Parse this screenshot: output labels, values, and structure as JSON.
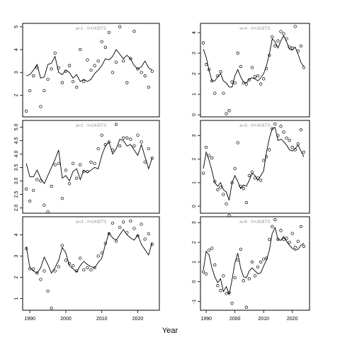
{
  "chart_data": {
    "type": "line",
    "xlabel": "Year",
    "x_ticks": [
      1990,
      2000,
      2010,
      2020
    ],
    "x_range": [
      1988,
      2026
    ],
    "panels": [
      {
        "title": "a=1 : f=UKBTS",
        "ylim": [
          1.05,
          5.15
        ],
        "y_ticks": [
          2,
          3,
          4,
          5
        ],
        "fitted": {
          "x": [
            1989,
            1990,
            1991,
            1992,
            1993,
            1994,
            1995,
            1996,
            1997,
            1998,
            1999,
            2000,
            2001,
            2002,
            2003,
            2004,
            2005,
            2006,
            2007,
            2008,
            2009,
            2010,
            2011,
            2012,
            2013,
            2014,
            2015,
            2016,
            2017,
            2018,
            2019,
            2020,
            2021,
            2022,
            2023,
            2024
          ],
          "y": [
            2.85,
            2.9,
            3.1,
            3.35,
            2.75,
            2.8,
            3.35,
            3.4,
            3.7,
            3.0,
            2.9,
            3.1,
            3.0,
            2.75,
            2.9,
            2.6,
            2.7,
            2.6,
            2.7,
            2.95,
            3.1,
            3.3,
            3.6,
            3.55,
            3.7,
            4.0,
            3.8,
            3.6,
            3.75,
            3.6,
            3.3,
            3.15,
            3.25,
            3.5,
            3.2,
            3.1
          ]
        },
        "observed": {
          "x": [
            1989,
            1990,
            1991,
            1992,
            1993,
            1994,
            1995,
            1996,
            1997,
            1998,
            1999,
            2000,
            2001,
            2002,
            2003,
            2004,
            2005,
            2006,
            2007,
            2008,
            2009,
            2010,
            2011,
            2012,
            2013,
            2014,
            2015,
            2016,
            2017,
            2018,
            2019,
            2020,
            2021,
            2022,
            2023,
            2024
          ],
          "y": [
            1.3,
            2.2,
            2.85,
            3.2,
            1.5,
            2.2,
            2.7,
            3.15,
            3.85,
            3.2,
            2.55,
            3.05,
            3.3,
            2.6,
            2.35,
            4.0,
            2.6,
            3.55,
            3.1,
            3.3,
            3.5,
            4.35,
            4.1,
            4.75,
            3.0,
            3.45,
            5.0,
            3.5,
            2.55,
            3.6,
            4.8,
            3.15,
            3.0,
            2.85,
            2.35,
            3.05
          ]
        }
      },
      {
        "title": "a=4 : f=UKBTS",
        "ylim": [
          -0.1,
          4.45
        ],
        "y_ticks": [
          0,
          1,
          2,
          3,
          4
        ],
        "fitted": {
          "x": [
            1989,
            1990,
            1991,
            1992,
            1993,
            1994,
            1995,
            1996,
            1997,
            1998,
            1999,
            2000,
            2001,
            2002,
            2003,
            2004,
            2005,
            2006,
            2007,
            2008,
            2009,
            2010,
            2011,
            2012,
            2013,
            2014,
            2015,
            2016,
            2017,
            2018,
            2019,
            2020,
            2021,
            2022,
            2023,
            2024
          ],
          "y": [
            3.2,
            2.8,
            2.15,
            1.65,
            1.65,
            1.85,
            2.0,
            1.65,
            1.55,
            1.35,
            1.35,
            1.9,
            2.2,
            1.85,
            1.6,
            1.55,
            1.75,
            1.8,
            1.75,
            1.65,
            1.8,
            2.0,
            2.4,
            2.95,
            3.7,
            3.55,
            3.25,
            3.6,
            3.85,
            3.55,
            3.2,
            3.15,
            3.3,
            2.95,
            2.55,
            2.35
          ]
        },
        "observed": {
          "x": [
            1989,
            1990,
            1991,
            1992,
            1993,
            1994,
            1995,
            1996,
            1997,
            1998,
            1999,
            2000,
            2001,
            2002,
            2003,
            2004,
            2005,
            2006,
            2007,
            2008,
            2009,
            2010,
            2011,
            2012,
            2013,
            2014,
            2015,
            2016,
            2017,
            2018,
            2019,
            2020,
            2021,
            2022,
            2023,
            2024
          ],
          "y": [
            3.5,
            2.45,
            2.2,
            1.65,
            1.05,
            1.9,
            2.1,
            1.05,
            0.05,
            0.2,
            1.6,
            1.55,
            3.0,
            2.35,
            1.55,
            1.5,
            1.7,
            2.3,
            1.85,
            1.9,
            1.5,
            1.75,
            2.25,
            2.9,
            3.8,
            3.35,
            3.6,
            4.05,
            3.95,
            3.7,
            3.3,
            3.25,
            4.3,
            3.1,
            3.35,
            2.3
          ]
        }
      },
      {
        "title": "a=2 : f=UKBTS",
        "ylim": [
          1.8,
          5.25
        ],
        "y_ticks": [
          2.0,
          2.5,
          3.0,
          3.5,
          4.0,
          4.5,
          5.0
        ],
        "fitted": {
          "x": [
            1989,
            1990,
            1991,
            1992,
            1993,
            1994,
            1995,
            1996,
            1997,
            1998,
            1999,
            2000,
            2001,
            2002,
            2003,
            2004,
            2005,
            2006,
            2007,
            2008,
            2009,
            2010,
            2011,
            2012,
            2013,
            2014,
            2015,
            2016,
            2017,
            2018,
            2019,
            2020,
            2021,
            2022,
            2023,
            2024
          ],
          "y": [
            3.65,
            3.15,
            3.15,
            3.4,
            3.1,
            2.9,
            3.2,
            3.5,
            3.8,
            4.15,
            3.1,
            3.2,
            3.0,
            3.35,
            3.45,
            3.05,
            3.4,
            3.3,
            3.4,
            3.5,
            3.45,
            3.95,
            4.3,
            4.45,
            4.0,
            4.2,
            4.55,
            4.5,
            4.3,
            4.35,
            4.15,
            3.95,
            4.35,
            3.9,
            3.45,
            3.85
          ]
        },
        "observed": {
          "x": [
            1989,
            1990,
            1991,
            1992,
            1993,
            1994,
            1995,
            1996,
            1997,
            1998,
            1999,
            2000,
            2001,
            2002,
            2003,
            2004,
            2005,
            2006,
            2007,
            2008,
            2009,
            2010,
            2011,
            2012,
            2013,
            2014,
            2015,
            2016,
            2017,
            2018,
            2019,
            2020,
            2021,
            2022,
            2023,
            2024
          ],
          "y": [
            2.7,
            2.25,
            2.65,
            3.05,
            3.0,
            2.1,
            1.85,
            2.8,
            3.6,
            3.65,
            2.35,
            3.4,
            2.9,
            3.65,
            3.1,
            3.6,
            3.35,
            3.35,
            3.7,
            3.65,
            4.2,
            4.7,
            4.35,
            4.45,
            4.15,
            5.1,
            4.3,
            4.6,
            4.6,
            4.55,
            4.3,
            4.7,
            4.45,
            3.7,
            4.2,
            3.85
          ]
        }
      },
      {
        "title": "a=5 : f=UKBTS",
        "ylim": [
          -0.3,
          3.65
        ],
        "y_ticks": [
          0,
          1,
          2,
          3
        ],
        "fitted": {
          "x": [
            1989,
            1990,
            1991,
            1992,
            1993,
            1994,
            1995,
            1996,
            1997,
            1998,
            1999,
            2000,
            2001,
            2002,
            2003,
            2004,
            2005,
            2006,
            2007,
            2008,
            2009,
            2010,
            2011,
            2012,
            2013,
            2014,
            2015,
            2016,
            2017,
            2018,
            2019,
            2020,
            2021,
            2022,
            2023,
            2024
          ],
          "y": [
            1.6,
            2.3,
            1.95,
            1.5,
            1.0,
            0.85,
            1.0,
            0.7,
            0.6,
            0.25,
            1.0,
            1.3,
            1.05,
            0.75,
            0.9,
            0.85,
            1.1,
            1.4,
            1.3,
            1.1,
            1.3,
            1.5,
            2.3,
            2.9,
            3.3,
            3.35,
            2.8,
            2.85,
            2.75,
            2.6,
            2.4,
            2.35,
            2.45,
            2.6,
            2.35,
            2.1
          ]
        },
        "observed": {
          "x": [
            1989,
            1990,
            1991,
            1992,
            1993,
            1994,
            1995,
            1996,
            1997,
            1998,
            1999,
            2000,
            2001,
            2002,
            2003,
            2004,
            2005,
            2006,
            2007,
            2008,
            2009,
            2010,
            2011,
            2012,
            2013,
            2014,
            2015,
            2016,
            2017,
            2018,
            2019,
            2020,
            2021,
            2022,
            2023,
            2024
          ],
          "y": [
            1.4,
            2.5,
            2.15,
            2.05,
            1.05,
            0.7,
            0.8,
            0.5,
            0.1,
            -0.4,
            1.0,
            1.6,
            2.7,
            0.85,
            0.75,
            0.15,
            1.3,
            1.45,
            1.2,
            1.2,
            1.1,
            1.95,
            2.1,
            2.4,
            3.3,
            3.5,
            3.0,
            3.4,
            3.15,
            2.9,
            2.8,
            2.5,
            2.4,
            2.65,
            3.25,
            2.3
          ]
        }
      },
      {
        "title": "a=3 : f=UKBTS",
        "ylim": [
          0.45,
          4.85
        ],
        "y_ticks": [
          1,
          2,
          3,
          4
        ],
        "fitted": {
          "x": [
            1989,
            1990,
            1991,
            1992,
            1993,
            1994,
            1995,
            1996,
            1997,
            1998,
            1999,
            2000,
            2001,
            2002,
            2003,
            2004,
            2005,
            2006,
            2007,
            2008,
            2009,
            2010,
            2011,
            2012,
            2013,
            2014,
            2015,
            2016,
            2017,
            2018,
            2019,
            2020,
            2021,
            2022,
            2023,
            2024
          ],
          "y": [
            3.45,
            2.45,
            2.3,
            2.2,
            2.45,
            2.95,
            2.6,
            2.2,
            2.45,
            2.8,
            3.4,
            3.15,
            2.55,
            2.4,
            2.25,
            2.55,
            2.75,
            2.6,
            2.5,
            2.45,
            2.7,
            2.9,
            3.55,
            4.1,
            3.85,
            3.75,
            4.0,
            4.25,
            4.0,
            3.85,
            3.75,
            4.0,
            3.55,
            3.3,
            3.05,
            3.65
          ]
        },
        "observed": {
          "x": [
            1989,
            1990,
            1991,
            1992,
            1993,
            1994,
            1995,
            1996,
            1997,
            1998,
            1999,
            2000,
            2001,
            2002,
            2003,
            2004,
            2005,
            2006,
            2007,
            2008,
            2009,
            2010,
            2011,
            2012,
            2013,
            2014,
            2015,
            2016,
            2017,
            2018,
            2019,
            2020,
            2021,
            2022,
            2023,
            2024
          ],
          "y": [
            3.35,
            2.4,
            2.4,
            2.2,
            1.9,
            2.3,
            1.35,
            0.55,
            2.3,
            2.5,
            3.5,
            2.8,
            2.65,
            2.55,
            2.3,
            2.9,
            2.35,
            2.45,
            2.35,
            2.45,
            3.0,
            3.15,
            3.6,
            4.05,
            4.55,
            3.7,
            4.35,
            4.6,
            4.1,
            4.65,
            4.3,
            3.95,
            4.5,
            3.8,
            4.05,
            3.55
          ]
        }
      },
      {
        "title": "a=6 : f=UKBTS",
        "ylim": [
          -1.45,
          3.3
        ],
        "y_ticks": [
          -1,
          0,
          1,
          2,
          3
        ],
        "fitted": {
          "x": [
            1989,
            1990,
            1991,
            1992,
            1993,
            1994,
            1995,
            1996,
            1997,
            1998,
            1999,
            2000,
            2001,
            2002,
            2003,
            2004,
            2005,
            2006,
            2007,
            2008,
            2009,
            2010,
            2011,
            2012,
            2013,
            2014,
            2015,
            2016,
            2017,
            2018,
            2019,
            2020,
            2021,
            2022,
            2023,
            2024
          ],
          "y": [
            0.6,
            1.55,
            1.35,
            0.7,
            0.25,
            -0.05,
            0.15,
            -0.5,
            -0.25,
            -0.65,
            0.1,
            0.95,
            1.45,
            0.7,
            0.25,
            0.2,
            0.55,
            0.7,
            0.55,
            0.4,
            0.45,
            0.8,
            1.1,
            1.6,
            2.45,
            2.75,
            2.15,
            2.1,
            2.3,
            2.05,
            1.85,
            1.7,
            1.6,
            1.65,
            1.85,
            1.95
          ]
        },
        "observed": {
          "x": [
            1989,
            1990,
            1991,
            1992,
            1993,
            1994,
            1995,
            1996,
            1997,
            1998,
            1999,
            2000,
            2001,
            2002,
            2003,
            2004,
            2005,
            2006,
            2007,
            2008,
            2009,
            2010,
            2011,
            2012,
            2013,
            2014,
            2015,
            2016,
            2017,
            2018,
            2019,
            2020,
            2021,
            2022,
            2023,
            2024
          ],
          "y": [
            0.5,
            0.4,
            1.6,
            1.7,
            0.85,
            -0.2,
            -0.45,
            0.3,
            -0.6,
            -0.55,
            -1.1,
            0.2,
            1.1,
            1.65,
            0.05,
            -1.3,
            0.15,
            1.0,
            0.3,
            0.75,
            1.0,
            1.15,
            1.2,
            2.15,
            2.8,
            3.15,
            2.15,
            2.6,
            2.15,
            2.2,
            2.0,
            2.45,
            1.75,
            2.05,
            2.8,
            1.8
          ]
        }
      }
    ]
  }
}
